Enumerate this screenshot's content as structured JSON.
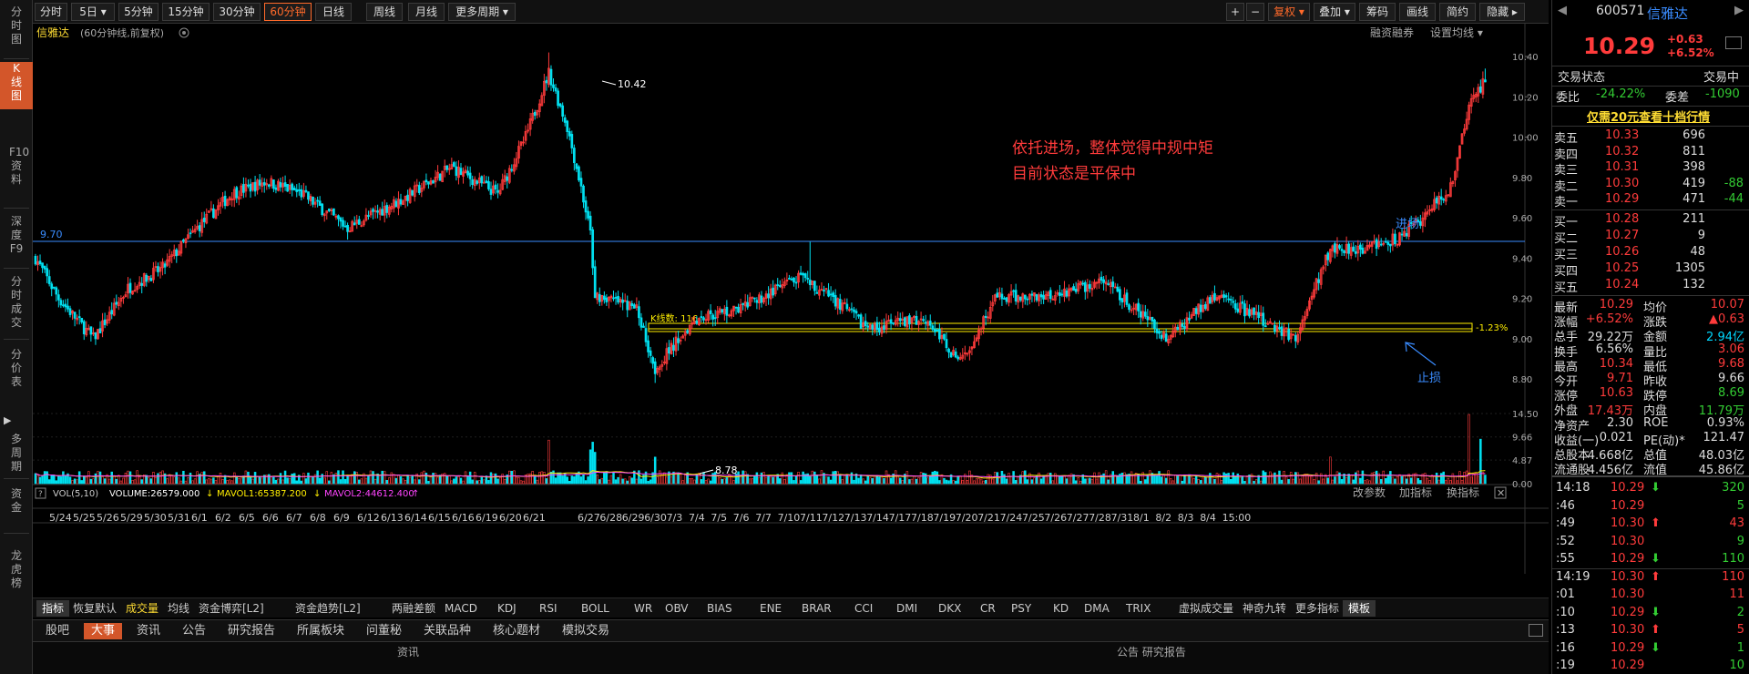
{
  "left_nav": [
    {
      "label": "分时图"
    },
    {
      "label": "K线图"
    },
    {
      "label": "F10资料"
    },
    {
      "label": "深度F9"
    },
    {
      "label": "分时成交"
    },
    {
      "label": "分价表"
    },
    {
      "label": "多周期"
    },
    {
      "label": "资金"
    },
    {
      "label": "龙虎榜"
    }
  ],
  "top_periods": [
    "分时",
    "5日 ▾",
    "5分钟",
    "15分钟",
    "30分钟",
    "60分钟",
    "日线",
    "周线",
    "月线",
    "更多周期 ▾"
  ],
  "top_right_buttons": [
    "+",
    "−",
    "复权 ▾",
    "叠加 ▾",
    "筹码",
    "画线",
    "简约",
    "隐藏 ▸"
  ],
  "chart_header": {
    "stock_name": "信雅达",
    "period_note": "(60分钟线,前复权)",
    "right1": "融资融券",
    "right2": "设置均线 ▾"
  },
  "annotations": {
    "high": "10.42",
    "low": "8.78",
    "hline": "9.70",
    "entry": "进场",
    "stop": "止损",
    "note1": "依托进场，整体觉得中规中矩",
    "note2": "目前状态是平保中",
    "klines": "K线数: 116",
    "pct": "-1.23%"
  },
  "volume_header": {
    "q": "?",
    "label": "VOL(5,10)",
    "vol": "VOLUME:26579.000",
    "ma1": "MAVOL1:65387.200",
    "ma2": "MAVOL2:44612.400",
    "right1": "改参数",
    "right2": "加指标",
    "right3": "换指标"
  },
  "price_axis": [
    "10.40",
    "10.20",
    "10.00",
    "9.80",
    "9.60",
    "9.40",
    "9.20",
    "9.00",
    "8.80"
  ],
  "vol_axis": [
    "14.50",
    "9.66",
    "4.87",
    "0.00"
  ],
  "date_labels": [
    "5/24",
    "5/25",
    "5/26",
    "5/29",
    "5/30",
    "5/31",
    "6/1",
    "6/2",
    "6/5",
    "6/6",
    "6/7",
    "6/8",
    "6/9",
    "6/12",
    "6/13",
    "6/14",
    "6/15",
    "6/16",
    "6/19",
    "6/20",
    "6/21",
    "6/27",
    "6/28",
    "6/29",
    "6/30",
    "7/3",
    "7/4",
    "7/5",
    "7/6",
    "7/7",
    "7/10",
    "7/11",
    "7/12",
    "7/13",
    "7/14",
    "7/17",
    "7/18",
    "7/19",
    "7/20",
    "7/21",
    "7/24",
    "7/25",
    "7/26",
    "7/27",
    "7/28",
    "7/31",
    "8/1",
    "8/2",
    "8/3",
    "8/4",
    "15:00"
  ],
  "indicator_tabs": [
    "指标",
    "恢复默认",
    "成交量",
    "均线",
    "资金博弈[L2]",
    "资金趋势[L2]",
    "两融差额",
    "MACD",
    "KDJ",
    "RSI",
    "BOLL",
    "WR",
    "OBV",
    "BIAS",
    "ENE",
    "BRAR",
    "CCI",
    "DMI",
    "DKX",
    "CR",
    "PSY",
    "KD",
    "DMA",
    "TRIX",
    "虚拟成交量",
    "神奇九转",
    "更多指标",
    "模板"
  ],
  "bottom_tabs": [
    "股吧",
    "大事",
    "资讯",
    "公告",
    "研究报告",
    "所属板块",
    "问董秘",
    "关联品种",
    "核心题材",
    "模拟交易"
  ],
  "bottom_strip": {
    "left": "资讯",
    "right": "公告 研究报告"
  },
  "quote": {
    "code": "600571",
    "name": "信雅达",
    "price": "10.29",
    "chg": "+0.63",
    "pct": "+6.52%",
    "status_label": "交易状态",
    "status": "交易中",
    "ratio_label": "委比",
    "ratio": "-24.22%",
    "diff_label": "委差",
    "diff": "-1090",
    "promo": "仅需20元查看十档行情"
  },
  "asks": [
    {
      "l": "卖五",
      "p": "10.33",
      "v": "696",
      "c": ""
    },
    {
      "l": "卖四",
      "p": "10.32",
      "v": "811",
      "c": ""
    },
    {
      "l": "卖三",
      "p": "10.31",
      "v": "398",
      "c": ""
    },
    {
      "l": "卖二",
      "p": "10.30",
      "v": "419",
      "c": "-88"
    },
    {
      "l": "卖一",
      "p": "10.29",
      "v": "471",
      "c": "-44"
    }
  ],
  "bids": [
    {
      "l": "买一",
      "p": "10.28",
      "v": "211"
    },
    {
      "l": "买二",
      "p": "10.27",
      "v": "9"
    },
    {
      "l": "买三",
      "p": "10.26",
      "v": "48"
    },
    {
      "l": "买四",
      "p": "10.25",
      "v": "1305"
    },
    {
      "l": "买五",
      "p": "10.24",
      "v": "132"
    }
  ],
  "stats": [
    [
      {
        "t": "最新",
        "c": "white"
      },
      {
        "t": "10.29",
        "c": "red"
      },
      {
        "t": "均价",
        "c": "white"
      },
      {
        "t": "10.07",
        "c": "red"
      }
    ],
    [
      {
        "t": "涨幅",
        "c": "white"
      },
      {
        "t": "+6.52%",
        "c": "red"
      },
      {
        "t": "涨跌",
        "c": "white"
      },
      {
        "t": "▲0.63",
        "c": "red"
      }
    ],
    [
      {
        "t": "总手",
        "c": "white"
      },
      {
        "t": "29.22万",
        "c": "white"
      },
      {
        "t": "金额",
        "c": "white"
      },
      {
        "t": "2.94亿",
        "c": "cyan"
      }
    ],
    [
      {
        "t": "换手",
        "c": "white"
      },
      {
        "t": "6.56%",
        "c": "white"
      },
      {
        "t": "量比",
        "c": "white"
      },
      {
        "t": "3.06",
        "c": "red"
      }
    ],
    [
      {
        "t": "最高",
        "c": "white"
      },
      {
        "t": "10.34",
        "c": "red"
      },
      {
        "t": "最低",
        "c": "white"
      },
      {
        "t": "9.68",
        "c": "red"
      }
    ],
    [
      {
        "t": "今开",
        "c": "white"
      },
      {
        "t": "9.71",
        "c": "red"
      },
      {
        "t": "昨收",
        "c": "white"
      },
      {
        "t": "9.66",
        "c": "white"
      }
    ],
    [
      {
        "t": "涨停",
        "c": "white"
      },
      {
        "t": "10.63",
        "c": "red"
      },
      {
        "t": "跌停",
        "c": "white"
      },
      {
        "t": "8.69",
        "c": "green"
      }
    ],
    [
      {
        "t": "外盘",
        "c": "white"
      },
      {
        "t": "17.43万",
        "c": "red"
      },
      {
        "t": "内盘",
        "c": "white"
      },
      {
        "t": "11.79万",
        "c": "green"
      }
    ],
    [
      {
        "t": "净资产",
        "c": "white"
      },
      {
        "t": "2.30",
        "c": "white"
      },
      {
        "t": "ROE",
        "c": "white"
      },
      {
        "t": "0.93%",
        "c": "white"
      }
    ],
    [
      {
        "t": "收益(一)",
        "c": "white"
      },
      {
        "t": "0.021",
        "c": "white"
      },
      {
        "t": "PE(动)*",
        "c": "white"
      },
      {
        "t": "121.47",
        "c": "white"
      }
    ],
    [
      {
        "t": "总股本",
        "c": "white"
      },
      {
        "t": "4.668亿",
        "c": "white"
      },
      {
        "t": "总值",
        "c": "white"
      },
      {
        "t": "48.03亿",
        "c": "white"
      }
    ],
    [
      {
        "t": "流通股",
        "c": "white"
      },
      {
        "t": "4.456亿",
        "c": "white"
      },
      {
        "t": "流值",
        "c": "white"
      },
      {
        "t": "45.86亿",
        "c": "white"
      }
    ]
  ],
  "ticks": [
    {
      "t": "14:18",
      "p": "10.29",
      "a": "⬇",
      "ac": "green",
      "v": "320",
      "vc": "green"
    },
    {
      "t": ":46",
      "p": "10.29",
      "a": "",
      "ac": "",
      "v": "5",
      "vc": "green"
    },
    {
      "t": ":49",
      "p": "10.30",
      "a": "⬆",
      "ac": "red",
      "v": "43",
      "vc": "red"
    },
    {
      "t": ":52",
      "p": "10.30",
      "a": "",
      "ac": "",
      "v": "9",
      "vc": "green"
    },
    {
      "t": ":55",
      "p": "10.29",
      "a": "⬇",
      "ac": "green",
      "v": "110",
      "vc": "green"
    },
    {
      "t": "14:19",
      "p": "10.30",
      "a": "⬆",
      "ac": "red",
      "v": "110",
      "vc": "red"
    },
    {
      "t": ":01",
      "p": "10.30",
      "a": "",
      "ac": "",
      "v": "11",
      "vc": "red"
    },
    {
      "t": ":10",
      "p": "10.29",
      "a": "⬇",
      "ac": "green",
      "v": "2",
      "vc": "green"
    },
    {
      "t": ":13",
      "p": "10.30",
      "a": "⬆",
      "ac": "red",
      "v": "5",
      "vc": "red"
    },
    {
      "t": ":16",
      "p": "10.29",
      "a": "⬇",
      "ac": "green",
      "v": "1",
      "vc": "green"
    },
    {
      "t": ":19",
      "p": "10.29",
      "a": "",
      "ac": "",
      "v": "10",
      "vc": "green"
    }
  ],
  "colors": {
    "up": "#ff3b3b",
    "down": "#00e0f0",
    "accent": "#ff6a2a",
    "hline": "#3a8cff",
    "box": "#ffee00",
    "ma1": "#ffee00",
    "ma2": "#ff44ff"
  }
}
